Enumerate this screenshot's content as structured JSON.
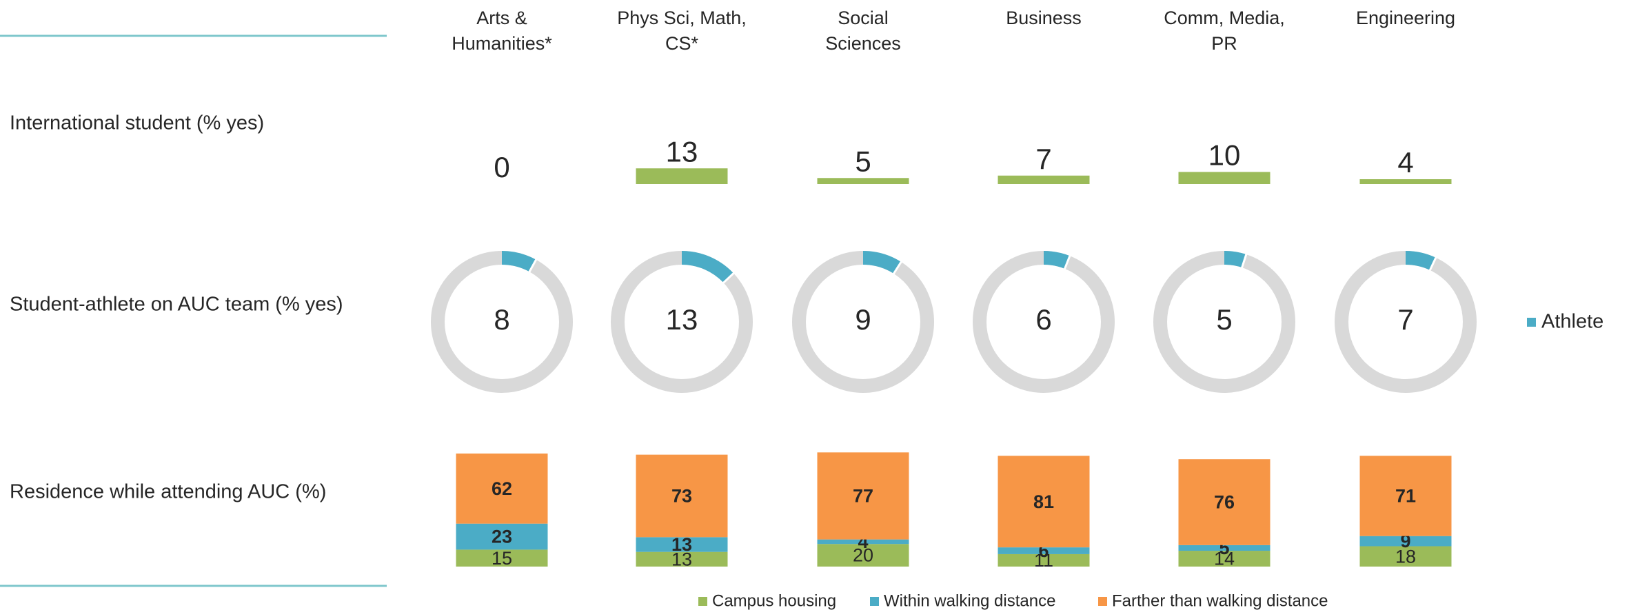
{
  "chart_data": [
    {
      "type": "bar",
      "title": "International student (% yes)",
      "categories": [
        "Arts & Humanities*",
        "Phys Sci, Math, CS*",
        "Social Sciences",
        "Business",
        "Comm, Media, PR",
        "Engineering"
      ],
      "values": [
        0,
        13,
        5,
        7,
        10,
        4
      ],
      "color": "#9bbb59",
      "ylim": [
        0,
        100
      ]
    },
    {
      "type": "donut",
      "title": "Student-athlete on AUC team (% yes)",
      "series": [
        {
          "name": "Athlete",
          "color": "#4bacc6",
          "values": [
            8,
            13,
            9,
            6,
            5,
            7
          ]
        }
      ],
      "ylim": [
        0,
        100
      ],
      "legend": "right"
    },
    {
      "type": "stacked_bar",
      "title": "Residence while attending AUC (%)",
      "series": [
        {
          "name": "Campus housing",
          "color": "#9bbb59",
          "values": [
            15,
            13,
            20,
            11,
            14,
            18
          ]
        },
        {
          "name": "Within walking distance",
          "color": "#4bacc6",
          "values": [
            23,
            13,
            4,
            6,
            5,
            9
          ]
        },
        {
          "name": "Farther than walking distance",
          "color": "#f79646",
          "values": [
            62,
            73,
            77,
            81,
            76,
            71
          ]
        }
      ],
      "ylim": [
        0,
        100
      ],
      "legend": "bottom"
    }
  ]
}
